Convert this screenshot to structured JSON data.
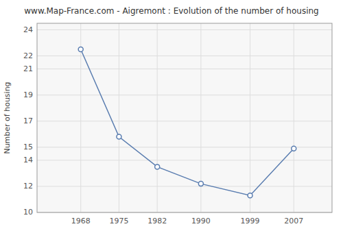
{
  "chart_data": {
    "type": "line",
    "title": "www.Map-France.com - Aigremont : Evolution of the number of housing",
    "ylabel": "Number of housing",
    "x": [
      1968,
      1975,
      1982,
      1990,
      1999,
      2007
    ],
    "values": [
      22.5,
      15.8,
      13.5,
      12.2,
      11.3,
      14.9
    ],
    "xlim": [
      1960,
      2014
    ],
    "ylim": [
      10,
      24.5
    ],
    "xticks": [
      1968,
      1975,
      1982,
      1990,
      1999,
      2007
    ],
    "yticks": [
      10,
      12,
      14,
      15,
      17,
      19,
      21,
      22,
      24
    ],
    "color": "#5a7db0",
    "marker": "circle",
    "grid": true
  }
}
